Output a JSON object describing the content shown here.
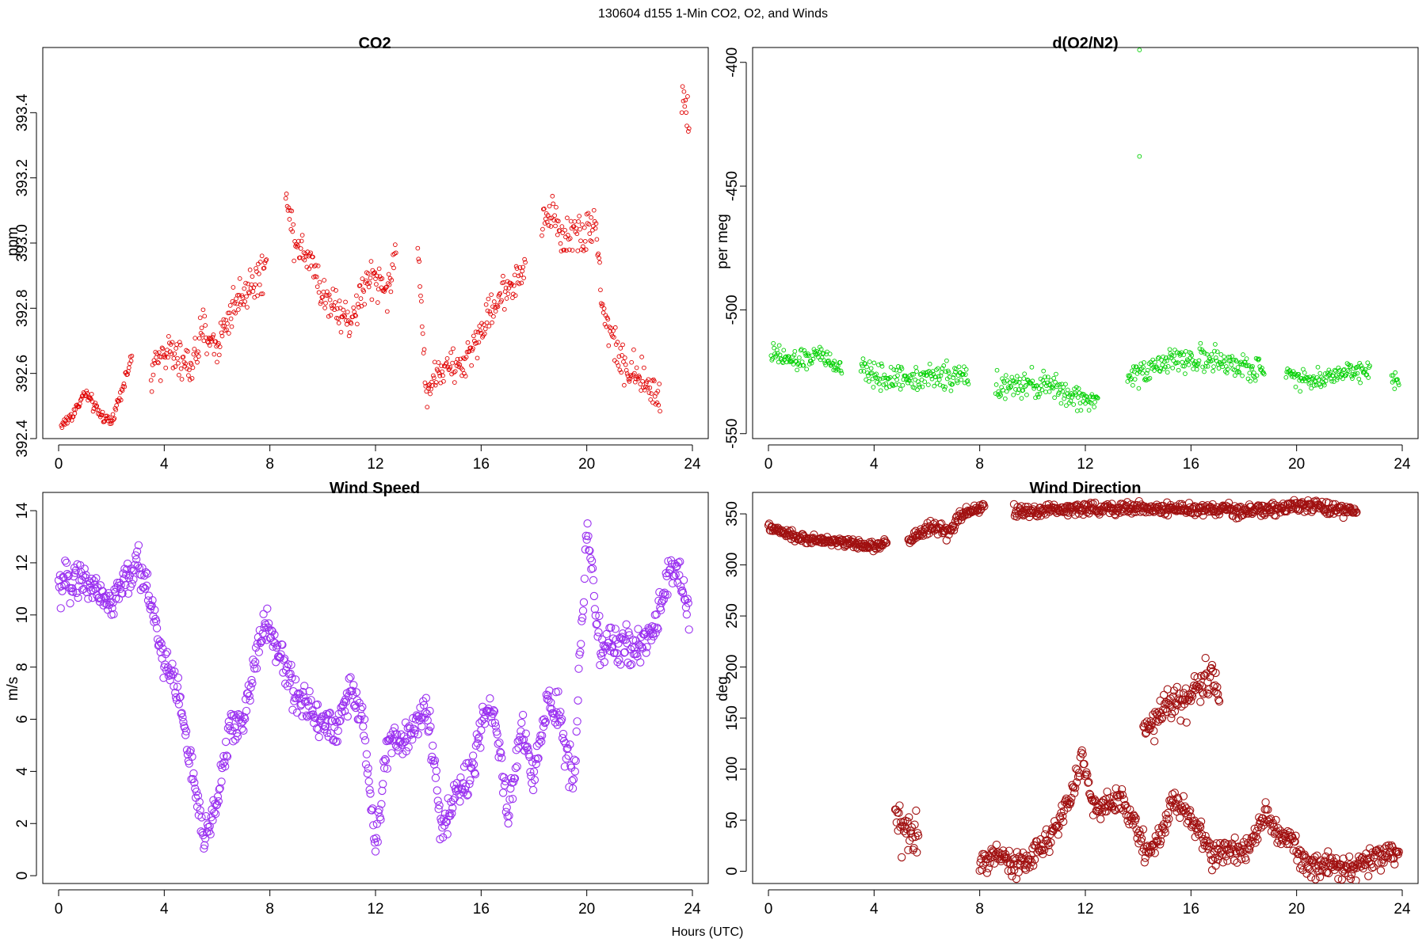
{
  "figure": {
    "suptitle": "130604   d155   1-Min CO2, O2, and Winds",
    "xlabel": "Hours (UTC)"
  },
  "chart_data": [
    {
      "type": "scatter",
      "title": "CO2",
      "ylabel": "ppm",
      "color": "#e00000",
      "marker": "small-circle",
      "xlim": [
        -0.6,
        24.6
      ],
      "ylim": [
        392.4,
        393.6
      ],
      "xticks": [
        0,
        4,
        8,
        12,
        16,
        20,
        24
      ],
      "xtick_labels": [
        "0",
        "4",
        "8",
        "12",
        "16",
        "20",
        "24"
      ],
      "yticks": [
        392.4,
        392.6,
        392.8,
        393.0,
        393.2,
        393.4
      ],
      "ytick_labels": [
        "392.4",
        "392.6",
        "392.8",
        "393.0",
        "393.2",
        "393.4"
      ],
      "segments": [
        {
          "x": [
            0.1,
            0.5,
            1.0,
            1.5,
            2.0,
            2.5,
            2.8
          ],
          "y": [
            392.44,
            392.47,
            392.54,
            392.48,
            392.45,
            392.58,
            392.65
          ],
          "spread": 0.02
        },
        {
          "x": [
            3.5,
            4.0,
            4.5,
            5.0,
            5.5,
            6.0,
            6.5,
            7.0,
            7.5,
            7.9
          ],
          "y": [
            392.59,
            392.68,
            392.64,
            392.62,
            392.73,
            392.68,
            392.79,
            392.85,
            392.89,
            392.92
          ],
          "spread": 0.06
        },
        {
          "x": [
            8.6,
            8.8,
            9.2,
            9.6,
            10.0,
            10.5,
            11.0,
            11.5,
            12.0,
            12.5,
            12.8
          ],
          "y": [
            393.2,
            393.05,
            392.98,
            392.96,
            392.83,
            392.82,
            392.75,
            392.85,
            392.9,
            392.85,
            393.0
          ],
          "spread": 0.06
        },
        {
          "x": [
            13.6,
            13.9,
            14.3,
            14.8,
            15.3,
            15.8,
            16.3,
            16.8,
            17.3,
            17.7
          ],
          "y": [
            393.0,
            392.55,
            392.6,
            392.62,
            392.62,
            392.7,
            392.78,
            392.85,
            392.88,
            392.93
          ],
          "spread": 0.05
        },
        {
          "x": [
            18.3,
            18.7,
            19.2,
            19.6,
            20.0,
            20.3,
            20.6,
            21.0,
            21.5,
            22.0,
            22.5,
            22.8
          ],
          "y": [
            393.05,
            393.1,
            393.0,
            393.05,
            393.02,
            393.1,
            392.8,
            392.7,
            392.6,
            392.58,
            392.55,
            392.53
          ],
          "spread": 0.06
        },
        {
          "x": [
            23.6,
            23.9
          ],
          "y": [
            393.45,
            393.4
          ],
          "spread": 0.08
        }
      ]
    },
    {
      "type": "scatter",
      "title": "d(O2/N2)",
      "ylabel": "per meg",
      "color": "#00d000",
      "marker": "small-circle",
      "xlim": [
        -0.6,
        24.6
      ],
      "ylim": [
        -552,
        -394
      ],
      "xticks": [
        0,
        4,
        8,
        12,
        16,
        20,
        24
      ],
      "xtick_labels": [
        "0",
        "4",
        "8",
        "12",
        "16",
        "20",
        "24"
      ],
      "yticks": [
        -550,
        -500,
        -450,
        -400
      ],
      "ytick_labels": [
        "-550",
        "-500",
        "-450",
        "-400"
      ],
      "segments": [
        {
          "x": [
            0.1,
            1.0,
            2.0,
            2.8
          ],
          "y": [
            -518,
            -521,
            -518,
            -525
          ],
          "spread": 4
        },
        {
          "x": [
            3.5,
            4.5,
            5.5,
            6.5,
            7.6
          ],
          "y": [
            -524,
            -528,
            -527,
            -527,
            -527
          ],
          "spread": 5
        },
        {
          "x": [
            8.6,
            9.5,
            10.5,
            11.5,
            12.5
          ],
          "y": [
            -531,
            -531,
            -530,
            -535,
            -537
          ],
          "spread": 5
        },
        {
          "x": [
            13.6,
            14.5,
            15.5,
            16.5,
            17.5,
            18.8
          ],
          "y": [
            -527,
            -523,
            -520,
            -520,
            -522,
            -525
          ],
          "spread": 5
        },
        {
          "x": [
            19.6,
            20.5,
            21.5,
            22.8
          ],
          "y": [
            -524,
            -529,
            -526,
            -523
          ],
          "spread": 4
        },
        {
          "x": [
            23.6,
            23.9
          ],
          "y": [
            -530,
            -528
          ],
          "spread": 5
        }
      ],
      "outliers": {
        "x": [
          14.05,
          14.05
        ],
        "y": [
          -395,
          -438
        ]
      }
    },
    {
      "type": "scatter",
      "title": "Wind Speed",
      "ylabel": "m/s",
      "color": "#9a30f0",
      "marker": "circle",
      "xlim": [
        -0.6,
        24.6
      ],
      "ylim": [
        -0.3,
        14.7
      ],
      "xticks": [
        0,
        4,
        8,
        12,
        16,
        20,
        24
      ],
      "xtick_labels": [
        "0",
        "4",
        "8",
        "12",
        "16",
        "20",
        "24"
      ],
      "yticks": [
        0,
        2,
        4,
        6,
        8,
        10,
        12,
        14
      ],
      "ytick_labels": [
        "0",
        "2",
        "4",
        "6",
        "8",
        "10",
        "12",
        "14"
      ],
      "segments": [
        {
          "x": [
            0,
            0.6,
            1.2,
            2.0,
            2.5,
            3.0,
            3.5,
            4.0,
            4.5,
            5.0,
            5.5,
            6.0,
            6.5,
            7.0,
            7.5,
            7.9,
            8.5,
            9.0,
            9.5,
            10.0,
            10.5,
            11.0,
            11.5,
            12.0,
            12.5,
            13.0,
            13.5,
            14.0,
            14.5,
            15.0,
            15.5,
            16.0,
            16.5,
            17.0,
            17.5,
            18.0,
            18.5,
            19.0,
            19.5,
            20.0,
            20.5,
            21.0,
            21.5,
            22.0,
            22.5,
            23.0,
            23.5,
            23.9
          ],
          "y": [
            10.9,
            11.5,
            11.2,
            10.4,
            11.3,
            11.9,
            10.6,
            8.2,
            7.2,
            4.3,
            1.2,
            3.0,
            5.6,
            6.0,
            8.6,
            9.6,
            8.2,
            6.8,
            6.4,
            6.0,
            5.6,
            7.0,
            6.2,
            1.2,
            5.2,
            5.0,
            6.0,
            6.4,
            1.5,
            3.2,
            3.6,
            5.6,
            6.4,
            2.2,
            5.6,
            3.8,
            6.5,
            6.2,
            3.5,
            13.3,
            8.8,
            8.8,
            8.7,
            8.9,
            9.2,
            11.5,
            11.6,
            9.8
          ],
          "spread": 0.7
        }
      ]
    },
    {
      "type": "scatter",
      "title": "Wind Direction",
      "ylabel": "deg",
      "color": "#a01010",
      "marker": "circle",
      "xlim": [
        -0.6,
        24.6
      ],
      "ylim": [
        -12,
        371
      ],
      "xticks": [
        0,
        4,
        8,
        12,
        16,
        20,
        24
      ],
      "xtick_labels": [
        "0",
        "4",
        "8",
        "12",
        "16",
        "20",
        "24"
      ],
      "yticks": [
        0,
        50,
        100,
        150,
        200,
        250,
        300,
        350
      ],
      "ytick_labels": [
        "0",
        "50",
        "100",
        "150",
        "200",
        "250",
        "300",
        "350"
      ],
      "segments": [
        {
          "x": [
            0,
            0.5,
            1.0,
            2.0,
            3.0,
            4.0,
            4.5
          ],
          "y": [
            337,
            332,
            327,
            324,
            322,
            318,
            322
          ],
          "spread": 4
        },
        {
          "x": [
            5.3,
            5.8,
            6.3,
            6.8,
            7.3,
            7.8,
            8.2
          ],
          "y": [
            322,
            332,
            338,
            330,
            348,
            355,
            358
          ],
          "spread": 6
        },
        {
          "x": [
            4.8,
            5.1,
            5.4,
            5.7
          ],
          "y": [
            55,
            40,
            30,
            35
          ],
          "spread": 20
        },
        {
          "x": [
            8.0,
            8.5,
            9.0,
            9.5,
            10.0,
            10.5,
            11.0,
            11.5,
            11.9,
            12.3,
            12.8,
            13.3,
            13.8,
            14.3,
            14.8,
            15.3,
            15.8,
            16.3,
            16.8,
            17.3,
            17.8,
            18.3,
            18.8,
            19.3,
            19.8,
            20.3,
            20.8,
            21.3,
            21.8,
            22.3,
            22.8,
            23.3,
            23.9
          ],
          "y": [
            5,
            20,
            10,
            5,
            15,
            30,
            45,
            75,
            115,
            60,
            65,
            70,
            50,
            20,
            30,
            70,
            60,
            40,
            15,
            20,
            15,
            30,
            55,
            35,
            30,
            10,
            3,
            5,
            5,
            5,
            8,
            15,
            20
          ],
          "spread": 12
        },
        {
          "x": [
            9.3,
            10.4,
            10.7,
            13.7,
            16.6,
            17.6,
            20.6,
            22.3
          ],
          "y": [
            352,
            352,
            355,
            355,
            355,
            352,
            358,
            352
          ],
          "spread": 6
        },
        {
          "x": [
            14.2,
            16.8,
            17.1
          ],
          "y": [
            140,
            190,
            165
          ],
          "spread": 18
        }
      ]
    }
  ]
}
